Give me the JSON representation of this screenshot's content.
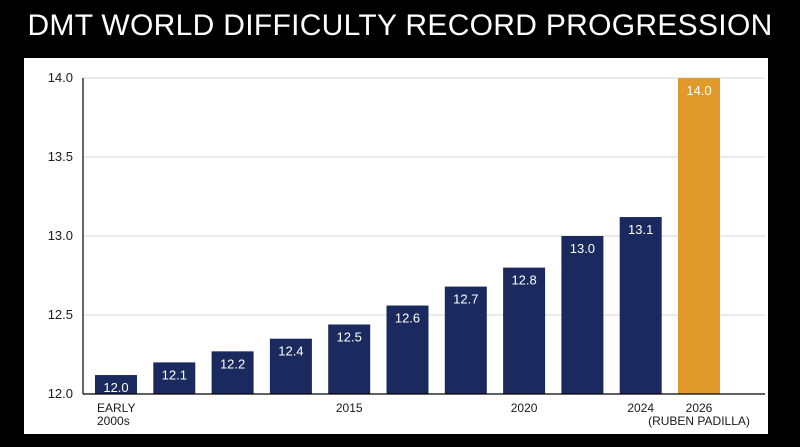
{
  "title": "DMT WORLD DIFFICULTY RECORD PROGRESSION",
  "colors": {
    "background": "#000000",
    "panel": "#ffffff",
    "bar_default": "#1b2a5e",
    "bar_highlight": "#e09a2a",
    "gridline": "#d6d6d6"
  },
  "chart_data": {
    "type": "bar",
    "title": "DMT WORLD DIFFICULTY RECORD PROGRESSION",
    "xlabel": "",
    "ylabel": "",
    "ylim": [
      12.0,
      14.0
    ],
    "yticks": [
      "12.0",
      "12.5",
      "13.0",
      "13.5",
      "14.0"
    ],
    "grid": true,
    "categories": [
      "EARLY 2000s",
      "",
      "",
      "",
      "2015",
      "",
      "",
      "2020",
      "",
      "2024",
      "2026 (RUBEN PADILLA)"
    ],
    "x_tick_labels": [
      {
        "index": 0,
        "lines": [
          "EARLY",
          "2000s"
        ]
      },
      {
        "index": 4,
        "lines": [
          "2015"
        ]
      },
      {
        "index": 7,
        "lines": [
          "2020"
        ]
      },
      {
        "index": 9,
        "lines": [
          "2024"
        ]
      },
      {
        "index": 10,
        "lines": [
          "2026",
          "(RUBEN PADILLA)"
        ]
      }
    ],
    "values": [
      12.0,
      12.1,
      12.2,
      12.4,
      12.5,
      12.6,
      12.7,
      12.8,
      13.0,
      13.1,
      14.0
    ],
    "labels": [
      "12.0",
      "12.1",
      "12.2",
      "12.4",
      "12.5",
      "12.6",
      "12.7",
      "12.8",
      "13.0",
      "13.1",
      "14.0"
    ],
    "plotted_heights": [
      12.12,
      12.2,
      12.27,
      12.35,
      12.44,
      12.56,
      12.68,
      12.8,
      13.0,
      13.12,
      14.0
    ],
    "highlight_index": 10
  }
}
